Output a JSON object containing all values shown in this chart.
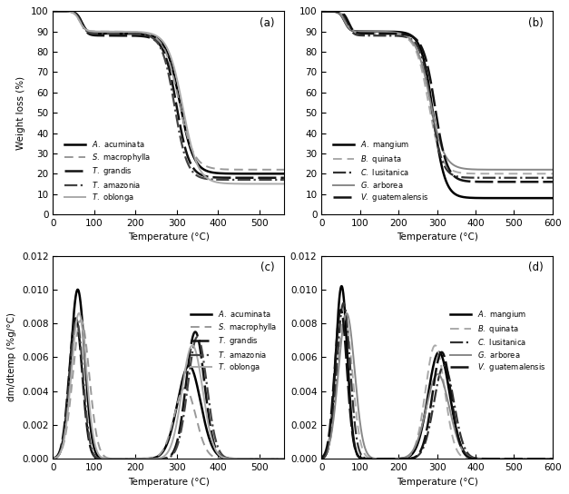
{
  "panel_a_label": "(a)",
  "panel_b_label": "(b)",
  "panel_c_label": "(c)",
  "panel_d_label": "(d)",
  "tga_ylabel": "Weight loss (%)",
  "dtg_ylabel": "dm/dtemp (%g/°C)",
  "xlabel": "Temperature (°C)",
  "tga_ylim": [
    0,
    100
  ],
  "tga_yticks": [
    0,
    10,
    20,
    30,
    40,
    50,
    60,
    70,
    80,
    90,
    100
  ],
  "tga_a_xlim": [
    0,
    560
  ],
  "tga_b_xlim": [
    0,
    600
  ],
  "dtg_ylim": [
    0,
    0.012
  ],
  "dtg_yticks": [
    0.0,
    0.002,
    0.004,
    0.006,
    0.008,
    0.01,
    0.012
  ],
  "dtg_a_xlim": [
    0,
    560
  ],
  "dtg_b_xlim": [
    0,
    600
  ],
  "legend_a_species": [
    "A. acuminata",
    "S. macrophylla",
    "T. grandis",
    "T. amazonia",
    "T. oblonga"
  ],
  "legend_b_species": [
    "A. mangium",
    "B. quinata",
    "C. lusitanica",
    "G. arborea",
    "V. guatemalensis"
  ],
  "background_color": "#ffffff",
  "font_size": 7.5
}
